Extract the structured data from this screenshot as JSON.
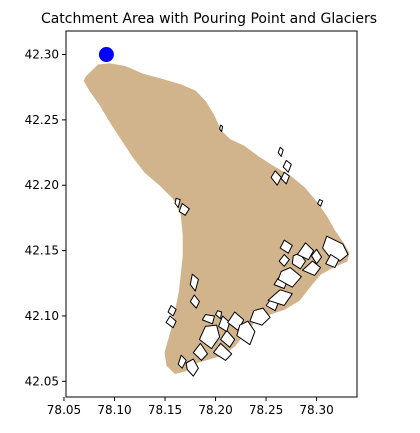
{
  "chart_data": {
    "type": "map",
    "title": "Catchment Area with Pouring Point and Glaciers",
    "xlabel": "",
    "ylabel": "",
    "xlim": [
      78.052,
      78.34
    ],
    "ylim": [
      42.038,
      42.318
    ],
    "x_ticks": [
      78.05,
      78.1,
      78.15,
      78.2,
      78.25,
      78.3
    ],
    "x_tick_labels": [
      "78.05",
      "78.10",
      "78.15",
      "78.20",
      "78.25",
      "78.30"
    ],
    "y_ticks": [
      42.05,
      42.1,
      42.15,
      42.2,
      42.25,
      42.3
    ],
    "y_tick_labels": [
      "42.05",
      "42.10",
      "42.15",
      "42.20",
      "42.25",
      "42.30"
    ],
    "grid": false,
    "colors": {
      "catchment": "#d2b48c",
      "glacier_fill": "#ffffff",
      "glacier_edge": "#000000",
      "pour_point": "#0000ff"
    },
    "pour_point": {
      "x": 78.092,
      "y": 42.3
    },
    "catchment_polygon": [
      [
        78.072,
        42.283
      ],
      [
        78.084,
        42.292
      ],
      [
        78.095,
        42.293
      ],
      [
        78.11,
        42.291
      ],
      [
        78.128,
        42.285
      ],
      [
        78.147,
        42.281
      ],
      [
        78.165,
        42.277
      ],
      [
        78.18,
        42.272
      ],
      [
        78.19,
        42.264
      ],
      [
        78.198,
        42.254
      ],
      [
        78.205,
        42.242
      ],
      [
        78.214,
        42.235
      ],
      [
        78.228,
        42.23
      ],
      [
        78.242,
        42.222
      ],
      [
        78.258,
        42.214
      ],
      [
        78.274,
        42.207
      ],
      [
        78.288,
        42.198
      ],
      [
        78.3,
        42.187
      ],
      [
        78.31,
        42.176
      ],
      [
        78.318,
        42.165
      ],
      [
        78.327,
        42.155
      ],
      [
        78.332,
        42.148
      ],
      [
        78.33,
        42.142
      ],
      [
        78.318,
        42.138
      ],
      [
        78.304,
        42.132
      ],
      [
        78.293,
        42.122
      ],
      [
        78.283,
        42.112
      ],
      [
        78.268,
        42.105
      ],
      [
        78.252,
        42.101
      ],
      [
        78.238,
        42.095
      ],
      [
        78.228,
        42.086
      ],
      [
        78.219,
        42.077
      ],
      [
        78.207,
        42.07
      ],
      [
        78.193,
        42.067
      ],
      [
        78.18,
        42.064
      ],
      [
        78.17,
        42.058
      ],
      [
        78.16,
        42.056
      ],
      [
        78.152,
        42.062
      ],
      [
        78.15,
        42.072
      ],
      [
        78.154,
        42.083
      ],
      [
        78.158,
        42.094
      ],
      [
        78.161,
        42.106
      ],
      [
        78.164,
        42.118
      ],
      [
        78.166,
        42.131
      ],
      [
        78.168,
        42.146
      ],
      [
        78.168,
        42.162
      ],
      [
        78.166,
        42.178
      ],
      [
        78.158,
        42.19
      ],
      [
        78.145,
        42.2
      ],
      [
        78.13,
        42.21
      ],
      [
        78.118,
        42.222
      ],
      [
        78.107,
        42.235
      ],
      [
        78.096,
        42.248
      ],
      [
        78.086,
        42.261
      ],
      [
        78.076,
        42.272
      ],
      [
        78.07,
        42.28
      ]
    ],
    "glaciers": [
      [
        [
          78.172,
          42.059
        ],
        [
          78.178,
          42.054
        ],
        [
          78.183,
          42.06
        ],
        [
          78.178,
          42.067
        ],
        [
          78.171,
          42.064
        ]
      ],
      [
        [
          78.163,
          42.063
        ],
        [
          78.167,
          42.06
        ],
        [
          78.171,
          42.066
        ],
        [
          78.166,
          42.07
        ]
      ],
      [
        [
          78.178,
          42.072
        ],
        [
          78.186,
          42.066
        ],
        [
          78.192,
          42.071
        ],
        [
          78.185,
          42.079
        ]
      ],
      [
        [
          78.184,
          42.082
        ],
        [
          78.196,
          42.075
        ],
        [
          78.204,
          42.084
        ],
        [
          78.201,
          42.093
        ],
        [
          78.19,
          42.092
        ]
      ],
      [
        [
          78.187,
          42.097
        ],
        [
          78.197,
          42.094
        ],
        [
          78.199,
          42.1
        ],
        [
          78.19,
          42.101
        ]
      ],
      [
        [
          78.198,
          42.072
        ],
        [
          78.21,
          42.066
        ],
        [
          78.216,
          42.071
        ],
        [
          78.205,
          42.079
        ]
      ],
      [
        [
          78.205,
          42.082
        ],
        [
          78.214,
          42.076
        ],
        [
          78.219,
          42.082
        ],
        [
          78.211,
          42.089
        ]
      ],
      [
        [
          78.203,
          42.092
        ],
        [
          78.211,
          42.088
        ],
        [
          78.214,
          42.095
        ],
        [
          78.207,
          42.1
        ]
      ],
      [
        [
          78.2,
          42.101
        ],
        [
          78.205,
          42.098
        ],
        [
          78.206,
          42.103
        ],
        [
          78.202,
          42.104
        ]
      ],
      [
        [
          78.212,
          42.095
        ],
        [
          78.222,
          42.089
        ],
        [
          78.228,
          42.097
        ],
        [
          78.219,
          42.103
        ]
      ],
      [
        [
          78.221,
          42.085
        ],
        [
          78.234,
          42.078
        ],
        [
          78.239,
          42.088
        ],
        [
          78.232,
          42.096
        ],
        [
          78.224,
          42.093
        ]
      ],
      [
        [
          78.234,
          42.096
        ],
        [
          78.246,
          42.093
        ],
        [
          78.254,
          42.099
        ],
        [
          78.247,
          42.106
        ],
        [
          78.238,
          42.104
        ]
      ],
      [
        [
          78.25,
          42.108
        ],
        [
          78.259,
          42.104
        ],
        [
          78.262,
          42.11
        ],
        [
          78.255,
          42.113
        ]
      ],
      [
        [
          78.252,
          42.112
        ],
        [
          78.268,
          42.108
        ],
        [
          78.276,
          42.117
        ],
        [
          78.264,
          42.12
        ]
      ],
      [
        [
          78.258,
          42.124
        ],
        [
          78.268,
          42.121
        ],
        [
          78.271,
          42.127
        ],
        [
          78.262,
          42.129
        ]
      ],
      [
        [
          78.262,
          42.128
        ],
        [
          78.276,
          42.122
        ],
        [
          78.285,
          42.13
        ],
        [
          78.274,
          42.137
        ],
        [
          78.265,
          42.134
        ]
      ],
      [
        [
          78.263,
          42.142
        ],
        [
          78.268,
          42.138
        ],
        [
          78.273,
          42.143
        ],
        [
          78.268,
          42.147
        ]
      ],
      [
        [
          78.276,
          42.14
        ],
        [
          78.284,
          42.136
        ],
        [
          78.289,
          42.142
        ],
        [
          78.283,
          42.148
        ],
        [
          78.277,
          42.146
        ]
      ],
      [
        [
          78.286,
          42.135
        ],
        [
          78.298,
          42.131
        ],
        [
          78.304,
          42.137
        ],
        [
          78.296,
          42.142
        ]
      ],
      [
        [
          78.264,
          42.152
        ],
        [
          78.272,
          42.148
        ],
        [
          78.276,
          42.154
        ],
        [
          78.268,
          42.158
        ]
      ],
      [
        [
          78.281,
          42.147
        ],
        [
          78.292,
          42.143
        ],
        [
          78.297,
          42.15
        ],
        [
          78.289,
          42.156
        ]
      ],
      [
        [
          78.295,
          42.146
        ],
        [
          78.3,
          42.14
        ],
        [
          78.305,
          42.145
        ],
        [
          78.3,
          42.151
        ]
      ],
      [
        [
          78.306,
          42.152
        ],
        [
          78.31,
          42.161
        ],
        [
          78.326,
          42.155
        ],
        [
          78.331,
          42.147
        ],
        [
          78.323,
          42.142
        ],
        [
          78.312,
          42.146
        ]
      ],
      [
        [
          78.309,
          42.14
        ],
        [
          78.318,
          42.137
        ],
        [
          78.322,
          42.143
        ],
        [
          78.314,
          42.147
        ]
      ],
      [
        [
          78.151,
          42.095
        ],
        [
          78.158,
          42.091
        ],
        [
          78.161,
          42.096
        ],
        [
          78.155,
          42.1
        ]
      ],
      [
        [
          78.153,
          42.103
        ],
        [
          78.158,
          42.1
        ],
        [
          78.161,
          42.105
        ],
        [
          78.156,
          42.108
        ]
      ],
      [
        [
          78.175,
          42.111
        ],
        [
          78.181,
          42.106
        ],
        [
          78.184,
          42.111
        ],
        [
          78.179,
          42.116
        ]
      ],
      [
        [
          78.175,
          42.124
        ],
        [
          78.18,
          42.119
        ],
        [
          78.183,
          42.128
        ],
        [
          78.177,
          42.132
        ]
      ],
      [
        [
          78.164,
          42.18
        ],
        [
          78.17,
          42.177
        ],
        [
          78.174,
          42.182
        ],
        [
          78.167,
          42.186
        ]
      ],
      [
        [
          78.16,
          42.186
        ],
        [
          78.163,
          42.183
        ],
        [
          78.165,
          42.189
        ],
        [
          78.161,
          42.19
        ]
      ],
      [
        [
          78.255,
          42.206
        ],
        [
          78.261,
          42.2
        ],
        [
          78.265,
          42.206
        ],
        [
          78.259,
          42.211
        ]
      ],
      [
        [
          78.265,
          42.205
        ],
        [
          78.27,
          42.201
        ],
        [
          78.273,
          42.207
        ],
        [
          78.268,
          42.21
        ]
      ],
      [
        [
          78.267,
          42.214
        ],
        [
          78.272,
          42.21
        ],
        [
          78.275,
          42.216
        ],
        [
          78.27,
          42.219
        ]
      ],
      [
        [
          78.262,
          42.225
        ],
        [
          78.265,
          42.222
        ],
        [
          78.267,
          42.227
        ],
        [
          78.264,
          42.229
        ]
      ],
      [
        [
          78.301,
          42.186
        ],
        [
          78.304,
          42.184
        ],
        [
          78.306,
          42.188
        ],
        [
          78.303,
          42.189
        ]
      ],
      [
        [
          78.204,
          42.243
        ],
        [
          78.206,
          42.241
        ],
        [
          78.207,
          42.245
        ],
        [
          78.205,
          42.246
        ]
      ]
    ]
  }
}
